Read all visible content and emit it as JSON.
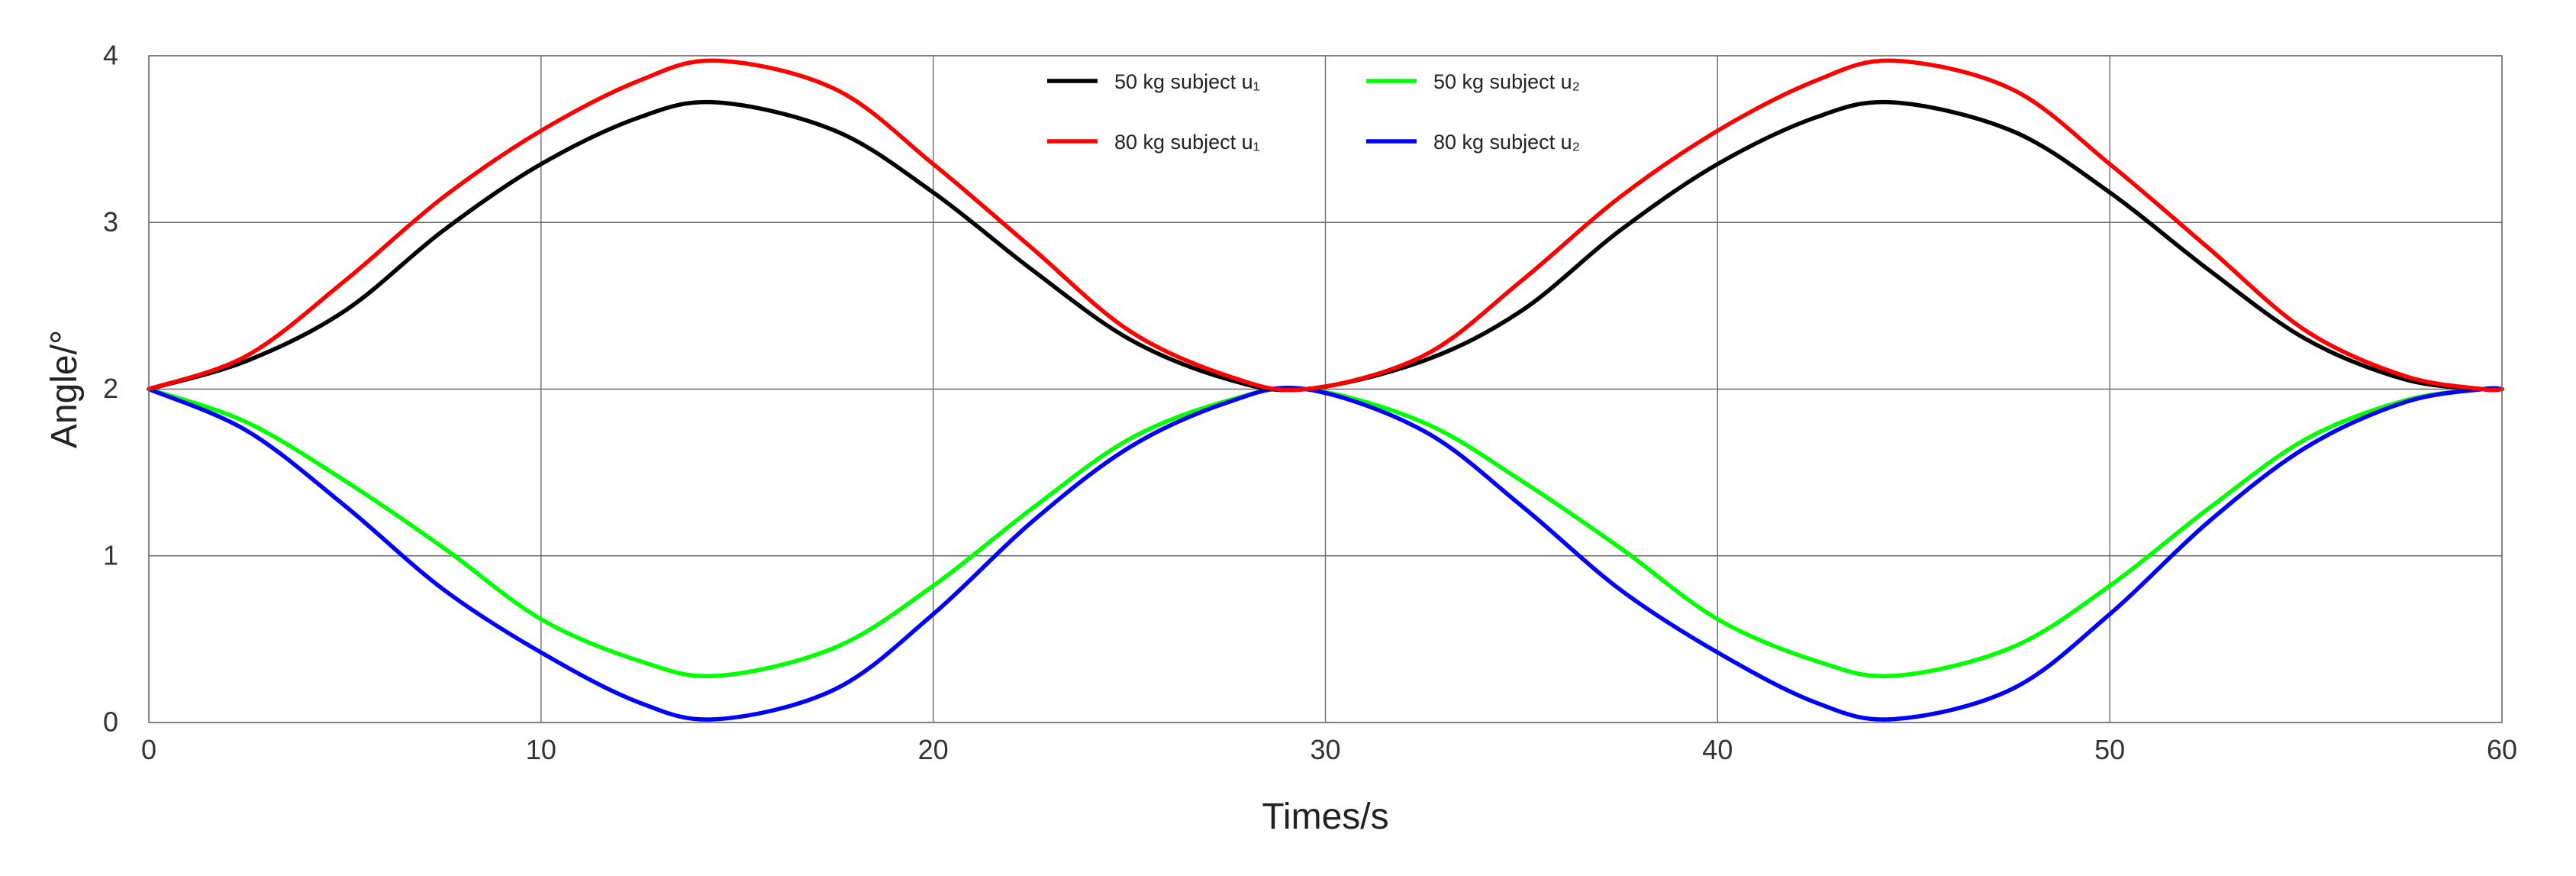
{
  "chart_data": {
    "type": "line",
    "title": "",
    "xlabel": "Times/s",
    "ylabel": "Angle/°",
    "xlim": [
      0,
      60
    ],
    "ylim": [
      0,
      4
    ],
    "xticks": [
      0,
      10,
      20,
      30,
      40,
      50,
      60
    ],
    "yticks": [
      0,
      1,
      2,
      3,
      4
    ],
    "xtick_labels": [
      "0",
      "10",
      "20",
      "30",
      "40",
      "50",
      "60"
    ],
    "ytick_labels": [
      "0",
      "1",
      "2",
      "3",
      "4"
    ],
    "grid": true,
    "legend_position": "top-center",
    "legend_columns": 2,
    "series": [
      {
        "name": "50 kg subject u₁",
        "color": "#000000",
        "x": [
          0,
          2.5,
          5,
          7.5,
          10,
          12.5,
          14.5,
          17.5,
          20,
          22.5,
          25,
          27.5,
          29.5,
          32.5,
          35,
          37.5,
          40,
          42.5,
          44.5,
          47.5,
          50,
          52.5,
          55,
          57.5,
          59.5,
          60
        ],
        "y": [
          2.0,
          2.17,
          2.47,
          2.95,
          3.35,
          3.63,
          3.72,
          3.55,
          3.18,
          2.72,
          2.3,
          2.06,
          2.0,
          2.17,
          2.47,
          2.95,
          3.35,
          3.63,
          3.72,
          3.55,
          3.18,
          2.72,
          2.3,
          2.06,
          2.0,
          2.0
        ]
      },
      {
        "name": "80 kg subject u₁",
        "color": "#ff0000",
        "x": [
          0,
          2.5,
          5,
          7.5,
          10,
          12.5,
          14.5,
          17.5,
          20,
          22.5,
          25,
          27.5,
          29.5,
          32.5,
          35,
          37.5,
          40,
          42.5,
          44.5,
          47.5,
          50,
          52.5,
          55,
          57.5,
          59.5,
          60
        ],
        "y": [
          2.0,
          2.2,
          2.65,
          3.15,
          3.55,
          3.85,
          3.97,
          3.8,
          3.35,
          2.85,
          2.35,
          2.08,
          2.0,
          2.2,
          2.65,
          3.15,
          3.55,
          3.85,
          3.97,
          3.8,
          3.35,
          2.85,
          2.35,
          2.08,
          2.0,
          2.0
        ]
      },
      {
        "name": "50 kg subject u₂",
        "color": "#00ff00",
        "x": [
          0,
          2.5,
          5,
          7.5,
          10,
          12.5,
          14.5,
          17.5,
          20,
          22.5,
          25,
          27.5,
          29.5,
          32.5,
          35,
          37.5,
          40,
          42.5,
          44.5,
          47.5,
          50,
          52.5,
          55,
          57.5,
          59.5,
          60
        ],
        "y": [
          2.0,
          1.8,
          1.45,
          1.05,
          0.62,
          0.37,
          0.28,
          0.45,
          0.82,
          1.28,
          1.7,
          1.93,
          2.0,
          1.8,
          1.45,
          1.05,
          0.62,
          0.37,
          0.28,
          0.45,
          0.82,
          1.28,
          1.7,
          1.93,
          2.0,
          2.0
        ]
      },
      {
        "name": "80 kg subject u₂",
        "color": "#0000ff",
        "x": [
          0,
          2.5,
          5,
          7.5,
          10,
          12.5,
          14.5,
          17.5,
          20,
          22.5,
          25,
          27.5,
          29.5,
          32.5,
          35,
          37.5,
          40,
          42.5,
          44.5,
          47.5,
          50,
          52.5,
          55,
          57.5,
          59.5,
          60
        ],
        "y": [
          2.0,
          1.75,
          1.3,
          0.8,
          0.42,
          0.12,
          0.02,
          0.2,
          0.65,
          1.2,
          1.65,
          1.92,
          2.0,
          1.75,
          1.3,
          0.8,
          0.42,
          0.12,
          0.02,
          0.2,
          0.65,
          1.2,
          1.65,
          1.92,
          2.0,
          2.0
        ]
      }
    ]
  }
}
